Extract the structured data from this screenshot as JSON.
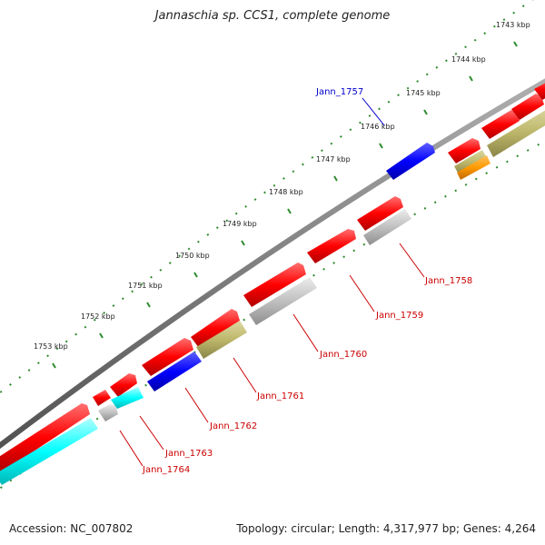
{
  "title": "Jannaschia sp. CCS1, complete genome",
  "footer": {
    "accession": "Accession: NC_007802",
    "summary": "Topology: circular; Length: 4,317,977 bp; Genes: 4,264"
  },
  "scale_labels": [
    "1743 kbp",
    "1744 kbp",
    "1745 kbp",
    "1746 kbp",
    "1747 kbp",
    "1748 kbp",
    "1749 kbp",
    "1750 kbp",
    "1751 kbp",
    "1752 kbp",
    "1753 kbp"
  ],
  "gene_labels": [
    {
      "text": "Jann_1757",
      "color": "#0000cc"
    },
    {
      "text": "Jann_1758",
      "color": "#cc0000"
    },
    {
      "text": "Jann_1759",
      "color": "#cc0000"
    },
    {
      "text": "Jann_1760",
      "color": "#cc0000"
    },
    {
      "text": "Jann_1761",
      "color": "#cc0000"
    },
    {
      "text": "Jann_1762",
      "color": "#cc0000"
    },
    {
      "text": "Jann_1763",
      "color": "#cc0000"
    },
    {
      "text": "Jann_1764",
      "color": "#cc0000"
    }
  ],
  "colors": {
    "forward_gene": "#ff0000",
    "reverse_gene": "#c0c0c0",
    "blue_gene": "#0000ff",
    "cyan_gene": "#00ffff",
    "olive_gene": "#bdb76b",
    "orange_gene": "#ff9900",
    "backbone": "#808080",
    "scale_ticks": "#2e8b2e"
  }
}
